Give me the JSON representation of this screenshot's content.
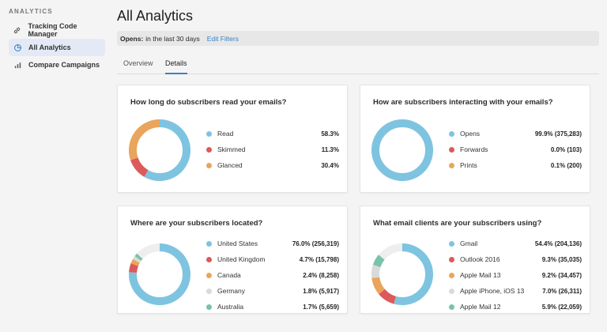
{
  "sidebar": {
    "heading": "ANALYTICS",
    "items": [
      {
        "label": "Tracking Code Manager",
        "icon": "link-icon"
      },
      {
        "label": "All Analytics",
        "icon": "pie-chart-icon"
      },
      {
        "label": "Compare Campaigns",
        "icon": "bar-chart-icon"
      }
    ],
    "active_index": 1
  },
  "header": {
    "title": "All Analytics",
    "filter_label": "Opens:",
    "filter_value": "in the last 30 days",
    "edit_filters": "Edit Filters"
  },
  "tabs": [
    {
      "label": "Overview",
      "active": false
    },
    {
      "label": "Details",
      "active": true
    }
  ],
  "colors": {
    "blue": "#7ec4e0",
    "red": "#dc5a5a",
    "orange": "#e9a55b",
    "gray": "#dadada",
    "teal": "#79c3a9",
    "accent": "#3b82c4"
  },
  "cards": [
    {
      "title": "How long do subscribers read your emails?",
      "items": [
        {
          "label": "Read",
          "value": "58.3%",
          "pct": 58.3,
          "color": "blue"
        },
        {
          "label": "Skimmed",
          "value": "11.3%",
          "pct": 11.3,
          "color": "red"
        },
        {
          "label": "Glanced",
          "value": "30.4%",
          "pct": 30.4,
          "color": "orange"
        }
      ]
    },
    {
      "title": "How are subscribers interacting with your emails?",
      "items": [
        {
          "label": "Opens",
          "value": "99.9% (375,283)",
          "pct": 99.9,
          "color": "blue"
        },
        {
          "label": "Forwards",
          "value": "0.0% (103)",
          "pct": 0.0,
          "color": "red"
        },
        {
          "label": "Prints",
          "value": "0.1% (200)",
          "pct": 0.1,
          "color": "orange"
        }
      ]
    },
    {
      "title": "Where are your subscribers located?",
      "items": [
        {
          "label": "United States",
          "value": "76.0% (256,319)",
          "pct": 76.0,
          "color": "blue"
        },
        {
          "label": "United Kingdom",
          "value": "4.7% (15,798)",
          "pct": 4.7,
          "color": "red"
        },
        {
          "label": "Canada",
          "value": "2.4% (8,258)",
          "pct": 2.4,
          "color": "orange"
        },
        {
          "label": "Germany",
          "value": "1.8% (5,917)",
          "pct": 1.8,
          "color": "gray"
        },
        {
          "label": "Australia",
          "value": "1.7% (5,659)",
          "pct": 1.7,
          "color": "teal"
        }
      ]
    },
    {
      "title": "What email clients are your subscribers using?",
      "items": [
        {
          "label": "Gmail",
          "value": "54.4% (204,136)",
          "pct": 54.4,
          "color": "blue"
        },
        {
          "label": "Outlook 2016",
          "value": "9.3% (35,035)",
          "pct": 9.3,
          "color": "red"
        },
        {
          "label": "Apple Mail 13",
          "value": "9.2% (34,457)",
          "pct": 9.2,
          "color": "orange"
        },
        {
          "label": "Apple iPhone, iOS 13",
          "value": "7.0% (26,311)",
          "pct": 7.0,
          "color": "gray"
        },
        {
          "label": "Apple Mail 12",
          "value": "5.9% (22,059)",
          "pct": 5.9,
          "color": "teal"
        }
      ]
    }
  ]
}
